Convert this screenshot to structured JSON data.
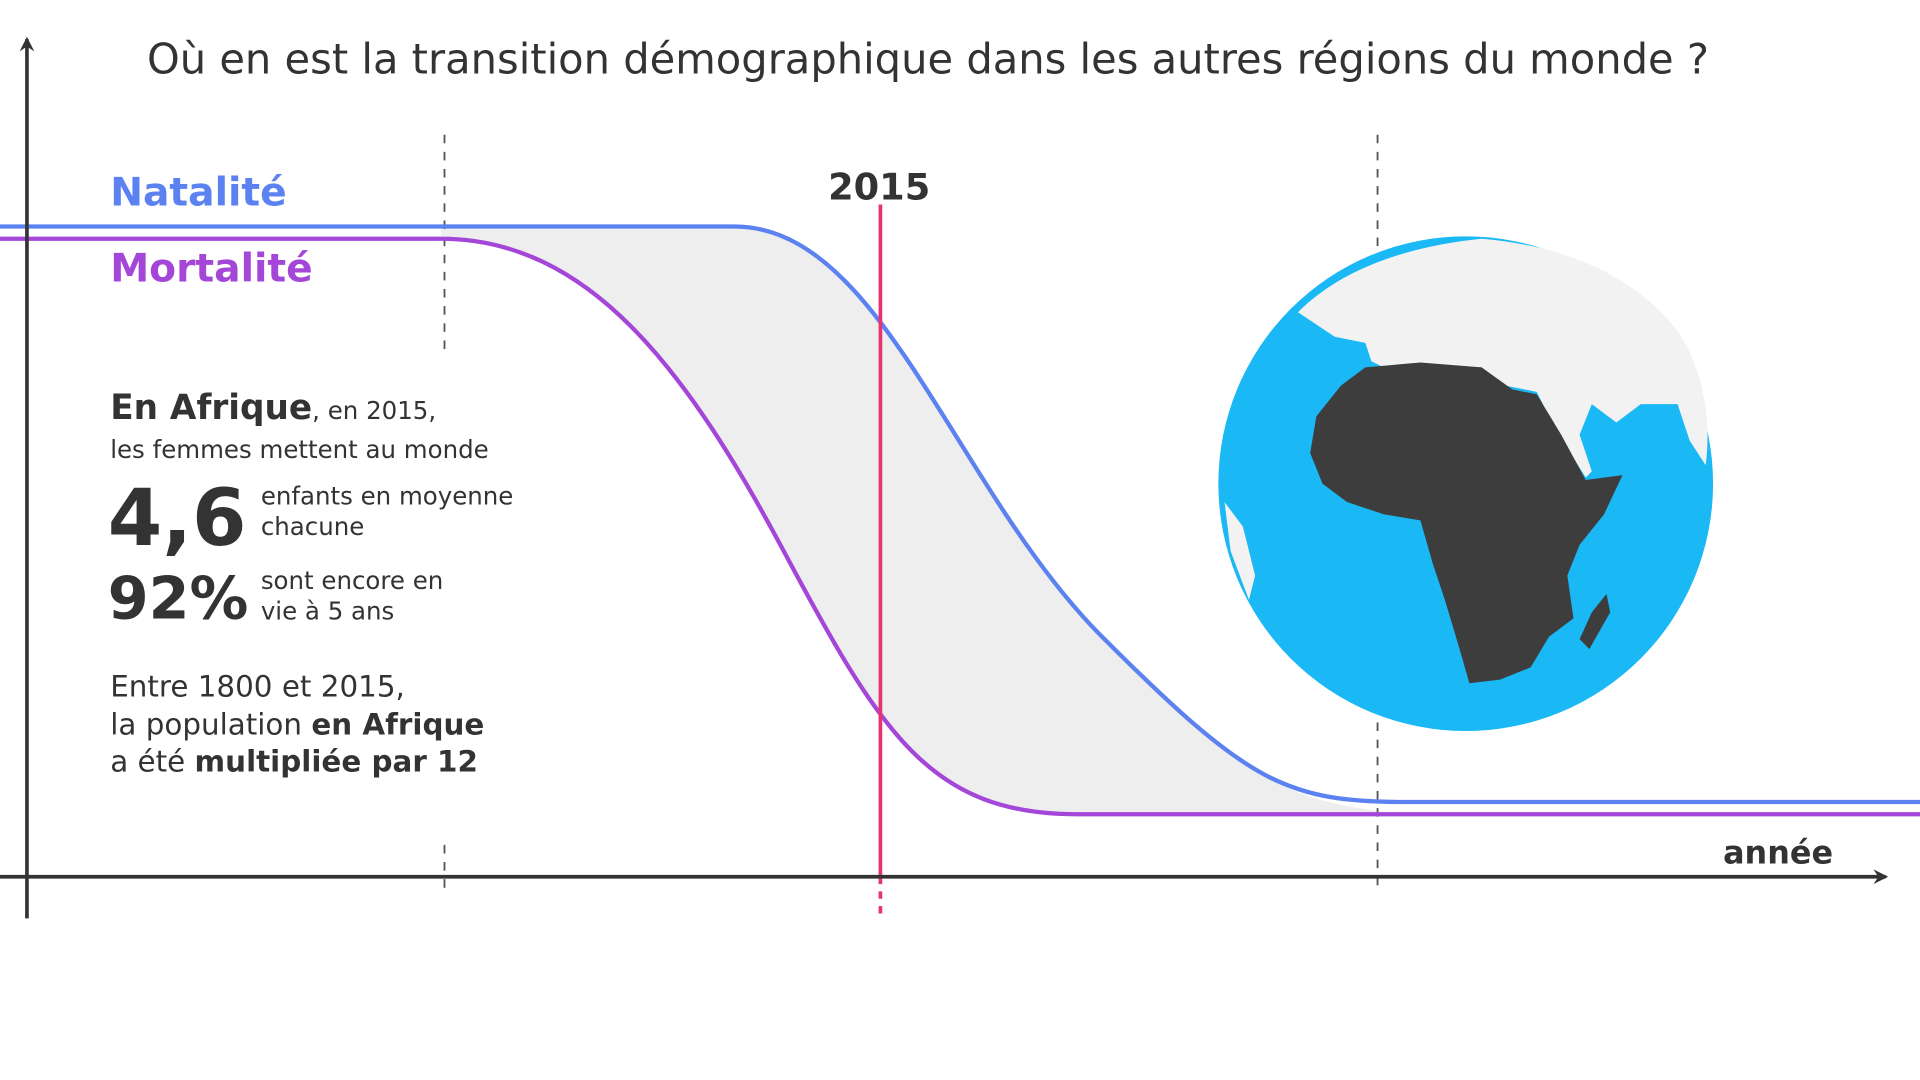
{
  "title": "Où en est la transition démographique dans les autres régions du monde ?",
  "legend": {
    "birth": "Natalité",
    "death": "Mortalité"
  },
  "marker": "2015",
  "axis_label": "année",
  "info": {
    "intro": [
      "En Afrique",
      ", en 2015,",
      "les femmes mettent au monde"
    ],
    "stats": [
      {
        "value": "4,6",
        "label": [
          "enfants en moyenne",
          "chacune"
        ]
      },
      {
        "value": "92%",
        "label": [
          "sont encore en",
          "vie à 5 ans"
        ]
      }
    ],
    "population": [
      "Entre 1800 et 2015,",
      "la population ",
      "en Afrique",
      "a été ",
      "multipliée par 12"
    ]
  }
}
